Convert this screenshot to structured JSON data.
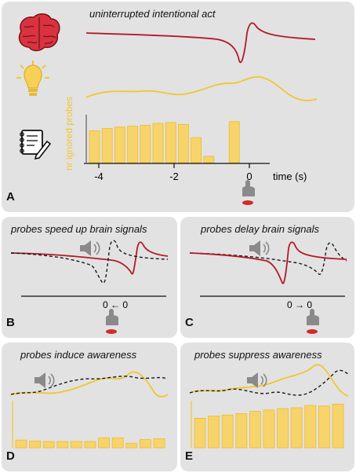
{
  "panel_a": {
    "label": "A",
    "title": "uninterrupted intentional act",
    "y_label": "nr ignored probes",
    "x_label": "time (s)",
    "ticks": [
      "-4",
      "-2",
      "0"
    ],
    "bar_values": [
      0.7,
      0.75,
      0.78,
      0.8,
      0.82,
      0.86,
      0.88,
      0.84,
      0.55,
      0.14,
      0,
      0.9
    ]
  },
  "panel_b": {
    "label": "B",
    "title": "probes speed up brain signals",
    "axis_text": "0 ← 0"
  },
  "panel_c": {
    "label": "C",
    "title": "probes delay brain signals",
    "axis_text": "0 → 0"
  },
  "panel_d": {
    "label": "D",
    "title": "probes induce awareness",
    "bar_values": [
      0.17,
      0.15,
      0.14,
      0.14,
      0.14,
      0.14,
      0.22,
      0.22,
      0.1,
      0.18,
      0.2
    ]
  },
  "panel_e": {
    "label": "E",
    "title": "probes suppress awareness",
    "bar_values": [
      0.65,
      0.7,
      0.72,
      0.75,
      0.8,
      0.83,
      0.86,
      0.88,
      0.93,
      0.92,
      0.96
    ]
  },
  "colors": {
    "brain": "#b01c28",
    "awareness": "#f2c62f",
    "bars": "#f7d46b",
    "bar_edge": "#f0b92a",
    "panel_bg": "#e2e2e2",
    "dashed": "#1a1a1a",
    "hand": "#8a8a8a",
    "button": "#d22b2b"
  },
  "icons": [
    "brain-icon",
    "lightbulb-icon",
    "notebook-icon",
    "hand-press-icon",
    "speaker-icon"
  ]
}
